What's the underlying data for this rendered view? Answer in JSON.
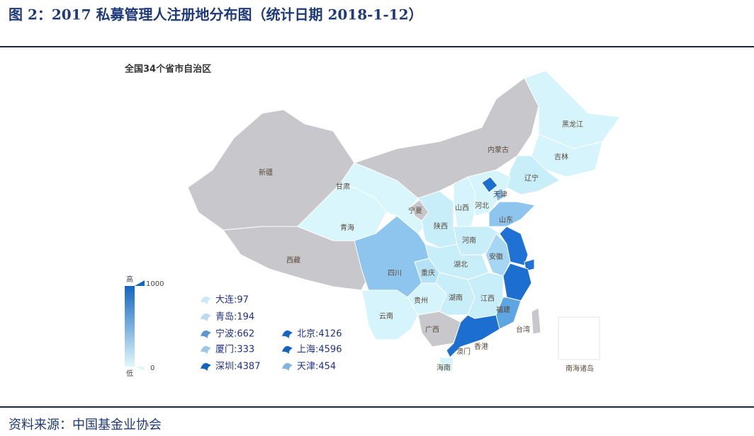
{
  "header": {
    "title": "图 2：2017 私募管理人注册地分布图（统计日期 2018-1-12）"
  },
  "map": {
    "title": "全国34个省市自治区",
    "regions": [
      {
        "name": "新疆",
        "color": "#c8c8cc"
      },
      {
        "name": "西藏",
        "color": "#c8c8cc"
      },
      {
        "name": "青海",
        "color": "#d8f6fb"
      },
      {
        "name": "甘肃",
        "color": "#d8f6fb"
      },
      {
        "name": "内蒙古",
        "color": "#c8c8cc"
      },
      {
        "name": "黑龙江",
        "color": "#d6f4fb"
      },
      {
        "name": "吉林",
        "color": "#d6f4fb"
      },
      {
        "name": "辽宁",
        "color": "#c8eefa"
      },
      {
        "name": "宁夏",
        "color": "#c8c8cc"
      },
      {
        "name": "陕西",
        "color": "#c8eefa"
      },
      {
        "name": "山西",
        "color": "#d6f4fb"
      },
      {
        "name": "河北",
        "color": "#d6f4fb"
      },
      {
        "name": null,
        "color": "#1c6fd0"
      },
      {
        "name": "天津",
        "color": "#7fb8e8"
      },
      {
        "name": "山东",
        "color": "#8ec5ee"
      },
      {
        "name": "河南",
        "color": "#c8eefa"
      },
      {
        "name": null,
        "color": "#1f72d4"
      },
      {
        "name": null,
        "color": "#1f72d4"
      },
      {
        "name": "安徽",
        "color": "#a5d6f3"
      },
      {
        "name": null,
        "color": "#1c6fd0"
      },
      {
        "name": "湖北",
        "color": "#c8eefa"
      },
      {
        "name": "重庆",
        "color": "#b5e2f7"
      },
      {
        "name": "四川",
        "color": "#8ec5ee"
      },
      {
        "name": "贵州",
        "color": "#d6f4fb"
      },
      {
        "name": "云南",
        "color": "#d6f4fb"
      },
      {
        "name": "湖南",
        "color": "#c8eefa"
      },
      {
        "name": "江西",
        "color": "#c8eefa"
      },
      {
        "name": "福建",
        "color": "#5ea5e4"
      },
      {
        "name": "广西",
        "color": "#c8c8cc"
      },
      {
        "name": null,
        "color": "#1c6fd0"
      },
      {
        "name": "海南",
        "color": "#d6f4fb"
      },
      {
        "name": "台湾",
        "color": "#c8c8cc"
      }
    ],
    "other_labels": [
      "香港",
      "澳门",
      "南海诸岛"
    ],
    "legend": {
      "high": "高",
      "low": "低",
      "range": [
        0,
        1000
      ],
      "colors": [
        "#e0f8fc",
        "#1565c0"
      ]
    },
    "cities": [
      {
        "label": "大连:97",
        "value": 97
      },
      {
        "label": "青岛:194",
        "value": 194
      },
      {
        "label": "宁波:662",
        "value": 662
      },
      {
        "label": "厦门:333",
        "value": 333
      },
      {
        "label": "深圳:4387",
        "value": 4387
      },
      {
        "label": "北京:4126",
        "value": 4126
      },
      {
        "label": "上海:4596",
        "value": 4596
      },
      {
        "label": "天津:454",
        "value": 454
      }
    ]
  },
  "footer": {
    "source": "资料来源：中国基金业协会"
  }
}
